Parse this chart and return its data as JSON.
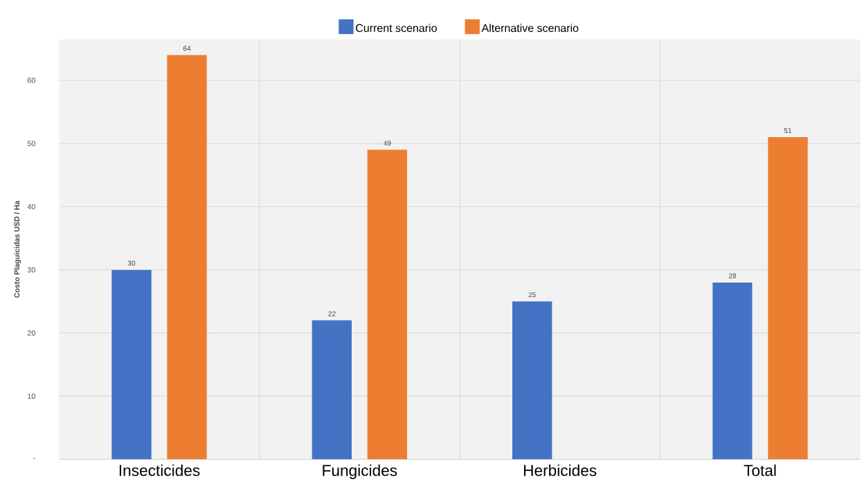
{
  "chart_data": {
    "type": "bar",
    "ylabel": "Costo Plaguicidas USD / Ha",
    "categories": [
      "Insecticides",
      "Fungicides",
      "Herbicides",
      "Total"
    ],
    "series": [
      {
        "name": "Current scenario",
        "color": "#4472c4",
        "values": [
          30,
          22,
          25,
          28
        ]
      },
      {
        "name": "Alternative scenario",
        "color": "#ed7d31",
        "values": [
          64,
          49,
          null,
          51
        ]
      }
    ],
    "ylim": [
      0,
      66.5
    ],
    "yticks": [
      {
        "value": 0,
        "label": "-"
      },
      10,
      20,
      30,
      40,
      50,
      60
    ],
    "grid": true,
    "legend": "top",
    "data_labels": true
  }
}
